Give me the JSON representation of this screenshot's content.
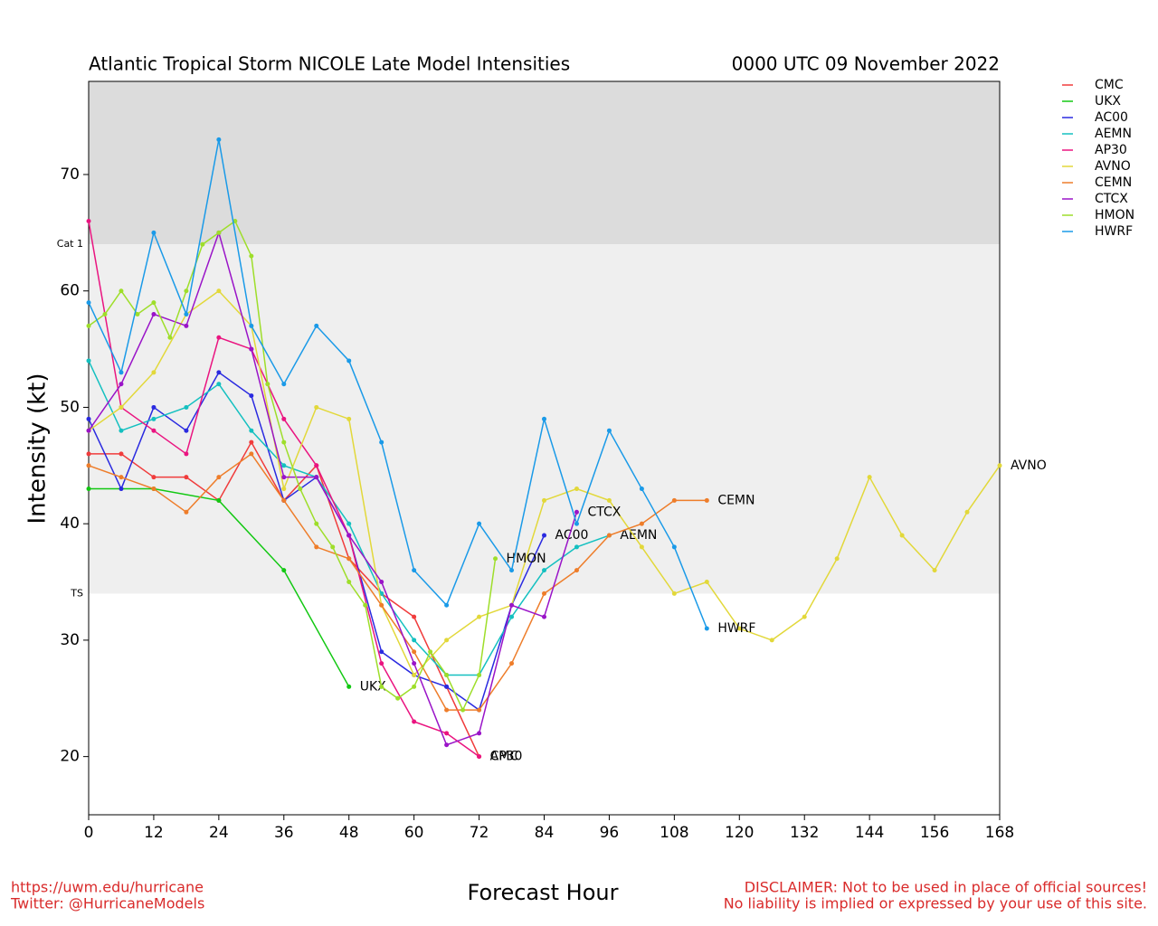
{
  "chart_data": {
    "type": "line",
    "title": "Atlantic Tropical Storm NICOLE Late Model Intensities",
    "subtitle": "0000 UTC 09 November 2022",
    "x_label": "Forecast Hour",
    "y_label": "Intensity (kt)",
    "footer_left": [
      "https://uwm.edu/hurricane",
      "Twitter: @HurricaneModels"
    ],
    "footer_right": [
      "DISCLAIMER: Not to be used in place of official sources!",
      "No liability is implied or expressed by your use of this site."
    ],
    "xlim": [
      0,
      168
    ],
    "xticks": [
      0,
      12,
      24,
      36,
      48,
      60,
      72,
      84,
      96,
      108,
      120,
      132,
      144,
      156,
      168
    ],
    "ylim": [
      15,
      78
    ],
    "yticks": [
      20,
      30,
      40,
      50,
      60,
      70
    ],
    "bands": [
      {
        "name": "Cat 1",
        "value": 64,
        "color": "#dcdcdc"
      },
      {
        "name": "TS",
        "value": 34,
        "color": "#efefef"
      }
    ],
    "series": [
      {
        "name": "CMC",
        "color": "#f03c3c",
        "x": [
          0,
          6,
          12,
          18,
          24,
          30,
          36,
          42,
          48,
          54,
          60,
          66,
          72
        ],
        "values": [
          46,
          46,
          44,
          44,
          42,
          47,
          42,
          45,
          37,
          34,
          32,
          26,
          20
        ]
      },
      {
        "name": "UKX",
        "color": "#12c812",
        "x": [
          0,
          12,
          24,
          36,
          48
        ],
        "values": [
          43,
          43,
          42,
          36,
          26
        ]
      },
      {
        "name": "AC00",
        "color": "#2a2ae0",
        "x": [
          0,
          6,
          12,
          18,
          24,
          30,
          36,
          42,
          48,
          54,
          60,
          66,
          72,
          78,
          84
        ],
        "values": [
          49,
          43,
          50,
          48,
          53,
          51,
          42,
          44,
          39,
          29,
          27,
          26,
          24,
          33,
          39
        ]
      },
      {
        "name": "AEMN",
        "color": "#14c0c0",
        "x": [
          0,
          6,
          12,
          18,
          24,
          30,
          36,
          42,
          48,
          54,
          60,
          66,
          72,
          78,
          84,
          90,
          96
        ],
        "values": [
          54,
          48,
          49,
          50,
          52,
          48,
          45,
          44,
          40,
          34,
          30,
          27,
          27,
          32,
          36,
          38,
          39
        ]
      },
      {
        "name": "AP30",
        "color": "#ea1480",
        "x": [
          0,
          6,
          12,
          18,
          24,
          30,
          36,
          42,
          48,
          54,
          60,
          66,
          72
        ],
        "values": [
          66,
          50,
          48,
          46,
          56,
          55,
          49,
          45,
          39,
          28,
          23,
          22,
          20
        ]
      },
      {
        "name": "AVNO",
        "color": "#e2d83a",
        "x": [
          0,
          6,
          12,
          18,
          24,
          30,
          36,
          42,
          48,
          54,
          60,
          66,
          72,
          78,
          84,
          90,
          96,
          102,
          108,
          114,
          120,
          126,
          132,
          138,
          144,
          150,
          156,
          162,
          168
        ],
        "values": [
          48,
          50,
          53,
          58,
          60,
          57,
          43,
          50,
          49,
          33,
          27,
          30,
          32,
          33,
          42,
          43,
          42,
          38,
          34,
          35,
          31,
          30,
          32,
          37,
          44,
          39,
          36,
          41,
          45
        ]
      },
      {
        "name": "CEMN",
        "color": "#ee7d2a",
        "x": [
          0,
          6,
          12,
          18,
          24,
          30,
          36,
          42,
          48,
          54,
          60,
          66,
          72,
          78,
          84,
          90,
          96,
          102,
          108,
          114
        ],
        "values": [
          45,
          44,
          43,
          41,
          44,
          46,
          42,
          38,
          37,
          33,
          29,
          24,
          24,
          28,
          34,
          36,
          39,
          40,
          42,
          42
        ]
      },
      {
        "name": "CTCX",
        "color": "#9a14c8",
        "x": [
          0,
          6,
          12,
          18,
          24,
          30,
          36,
          42,
          48,
          54,
          60,
          66,
          72,
          78,
          84,
          90
        ],
        "values": [
          48,
          52,
          58,
          57,
          65,
          55,
          44,
          44,
          39,
          35,
          28,
          21,
          22,
          33,
          32,
          41
        ]
      },
      {
        "name": "HMON",
        "color": "#9ede2a",
        "x": [
          0,
          3,
          6,
          9,
          12,
          15,
          18,
          21,
          24,
          27,
          30,
          33,
          36,
          39,
          42,
          45,
          48,
          51,
          54,
          57,
          60,
          63,
          66,
          69,
          72,
          75
        ],
        "values": [
          57,
          58,
          60,
          58,
          59,
          56,
          60,
          64,
          65,
          66,
          63,
          52,
          47,
          43,
          40,
          38,
          35,
          33,
          26,
          25,
          26,
          29,
          27,
          24,
          27,
          37
        ]
      },
      {
        "name": "HWRF",
        "color": "#1a9ae8",
        "x": [
          0,
          6,
          12,
          18,
          24,
          30,
          36,
          42,
          48,
          54,
          60,
          66,
          72,
          78,
          84,
          90,
          96,
          102,
          108,
          114
        ],
        "values": [
          59,
          53,
          65,
          58,
          73,
          57,
          52,
          57,
          54,
          47,
          36,
          33,
          40,
          36,
          49,
          40,
          48,
          43,
          38,
          31
        ]
      }
    ]
  }
}
